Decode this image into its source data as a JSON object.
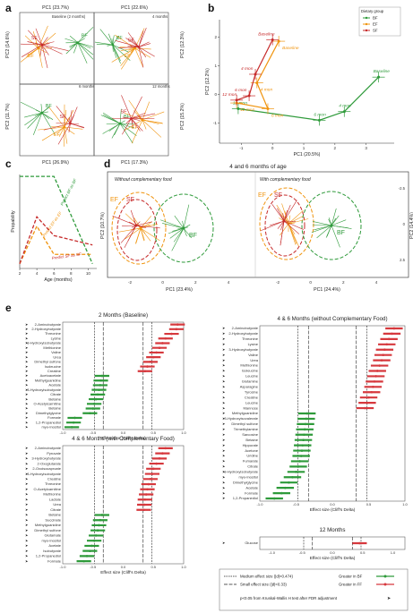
{
  "colors": {
    "BF": "#2e9a3a",
    "EF": "#f0940e",
    "SF": "#c62a2a",
    "axis": "#333333"
  },
  "panel_labels": [
    "a",
    "b",
    "c",
    "d",
    "e"
  ],
  "panel_a": {
    "top_xlabels": [
      "PC1 (23.7%)",
      "PC1 (22.6%)"
    ],
    "bottom_xlabels": [
      "PC1 (26.9%)",
      "PC1 (17.3%)"
    ],
    "ylabels": [
      "PC2 (14.6%)",
      "PC2 (12.3%)",
      "PC2 (11.7%)",
      "PC2 (15.2%)"
    ],
    "subtitles": [
      "Baseline (2 months)",
      "4 months",
      "6 months",
      "12 months"
    ],
    "groups": [
      "BF",
      "EF",
      "SF"
    ]
  },
  "chart_data": [
    {
      "type": "scatter",
      "panel": "b",
      "legend_title": "Dietary group",
      "legend": [
        "BF",
        "EF",
        "SF"
      ],
      "xlabel": "PC1 (20.5%)",
      "ylabel": "PC2 (12.2%)",
      "xticks": [
        "-1",
        "0",
        "1",
        "2",
        "3"
      ],
      "yticks": [
        "-1",
        "0",
        "1",
        "2"
      ],
      "xlim": [
        -1.7,
        3.9
      ],
      "ylim": [
        -1.7,
        2.6
      ],
      "series": [
        {
          "name": "BF",
          "points": [
            {
              "x": 3.4,
              "y": 0.6,
              "label": "Baseline"
            },
            {
              "x": 2.3,
              "y": -0.6,
              "label": "4 mon"
            },
            {
              "x": 1.5,
              "y": -0.9,
              "label": "6 mon"
            },
            {
              "x": -1.1,
              "y": -0.5,
              "label": "12 mon"
            }
          ]
        },
        {
          "name": "EF",
          "points": [
            {
              "x": 0.2,
              "y": 1.85,
              "label": "Baseline"
            },
            {
              "x": -0.5,
              "y": 0.4,
              "label": "4 mon"
            },
            {
              "x": -0.15,
              "y": -0.5,
              "label": "6 mon"
            },
            {
              "x": -1.15,
              "y": -0.3,
              "label": "12 mon"
            }
          ]
        },
        {
          "name": "SF",
          "points": [
            {
              "x": 0.0,
              "y": 1.9,
              "label": "Baseline"
            },
            {
              "x": -0.55,
              "y": 0.7,
              "label": "4 mon"
            },
            {
              "x": -0.75,
              "y": -0.05,
              "label": "6 mon"
            },
            {
              "x": -1.15,
              "y": -0.2,
              "label": "12 mon"
            }
          ]
        }
      ]
    },
    {
      "type": "line",
      "panel": "c",
      "xlabel": "Age (months)",
      "ylabel": "Propability",
      "xticks": [
        "2",
        "4",
        "6",
        "8",
        "10"
      ],
      "xlim": [
        2,
        11
      ],
      "series": [
        {
          "name": "Predict BF as BF",
          "x": [
            2,
            4,
            6,
            10.5
          ],
          "y": [
            0.98,
            0.98,
            0.98,
            0.05
          ]
        },
        {
          "name": "Predict EF as EF",
          "x": [
            2,
            4,
            6,
            10.5
          ],
          "y": [
            0.05,
            0.45,
            0.15,
            0.15
          ]
        },
        {
          "name": "Predict SF as SF",
          "x": [
            2,
            4,
            6,
            10.5
          ],
          "y": [
            0.05,
            0.55,
            0.35,
            0.25
          ]
        }
      ]
    },
    {
      "type": "scatter",
      "panel": "d",
      "title": "4 and 6 months of age",
      "subtitles": [
        "Without complementary food",
        "With complementary food"
      ],
      "xlabels": [
        "PC1 (23.4%)",
        "PC1 (24.4%)"
      ],
      "ylabels": [
        "PC2 (10.7%)",
        "PC2 (14.4%)"
      ],
      "xticks_left": [
        "-2",
        "0",
        "2",
        "4"
      ],
      "xticks_right": [
        "-2",
        "0",
        "2",
        "4"
      ],
      "yticks_right": [
        "-2.5",
        "0",
        "2.5"
      ]
    },
    {
      "type": "bar",
      "panel": "e",
      "subplots": [
        {
          "title": "2 Months (Baseline)",
          "xlabel": "Effect size (Cliff's Delta)",
          "xlim": [
            -1,
            1
          ],
          "categories": [
            "2-Aminobutyrate",
            "2-Hydroxybutyrate",
            "Threonine",
            "Lysine",
            "3-Hydroxyisobutyrate",
            "Methionine",
            "Valine",
            "Urea",
            "Dimethyl sulfone",
            "Isoleucine",
            "Creatine",
            "Acetoacetate",
            "Methylguanidine",
            "Acetate",
            "3-Hydroxyisobutyrate",
            "Citrate",
            "Betaine",
            "O-Acetylcarnitine",
            "Betaine",
            "Dimethylglycine",
            "Formate",
            "1,2-Propanediol",
            "myo-Inositol"
          ],
          "values": [
            0.9,
            0.88,
            0.8,
            0.7,
            0.65,
            0.6,
            0.55,
            0.5,
            0.45,
            0.4,
            0.36,
            -0.35,
            -0.37,
            -0.38,
            -0.4,
            -0.42,
            -0.45,
            -0.48,
            -0.5,
            -0.55,
            -0.8,
            -0.82,
            -0.85
          ]
        },
        {
          "title": "4 & 6 Months (with Complementary Food)",
          "xlabel": "Effect size (Cliff's Delta)",
          "xlim": [
            -1,
            1
          ],
          "categories": [
            "2-Aminobutyrate",
            "Pyruvate",
            "3-Hydroxybutyrate",
            "2-Oxoglutarate",
            "2-Oxoisocaproate",
            "3-Hydroxyisobutyrate",
            "Creatine",
            "Threonine",
            "O-Acetylcarnitine",
            "Methionine",
            "Lactate",
            "Urea",
            "Citrate",
            "Betaine",
            "Succinate",
            "Methylguanidine",
            "Dimethyl sulfone",
            "Glutamate",
            "myo-Inositol",
            "Acetate",
            "Isobutyrate",
            "1,2-Propanediol",
            "Formate"
          ],
          "values": [
            0.7,
            0.65,
            0.6,
            0.55,
            0.5,
            0.48,
            0.45,
            0.42,
            0.4,
            0.38,
            0.36,
            0.35,
            0.34,
            -0.35,
            -0.38,
            -0.4,
            -0.42,
            -0.45,
            -0.48,
            -0.52,
            -0.55,
            -0.6,
            -0.65
          ]
        },
        {
          "title": "4 & 6 Months (without Complementary Food)",
          "xlabel": "Effect size (Cliff's Delta)",
          "xlim": [
            -1,
            1
          ],
          "categories": [
            "2-Aminobutyrate",
            "2-Hydroxybutyrate",
            "Threonine",
            "Lysine",
            "3-Hydroxybutyrate",
            "Valine",
            "Urea",
            "Methionine",
            "Isoleucine",
            "Leucine",
            "Glutamine",
            "Asparagine",
            "Tyrosine",
            "Creatine",
            "Leucine",
            "Mannose",
            "Methylguanidine",
            "3-Hydroxyisovalerate",
            "Dimethyl sulfone",
            "Trimethylamine",
            "Sarcosine",
            "Betaine",
            "Hippurate",
            "Acetone",
            "Uridine",
            "Fumarate",
            "Citrate",
            "3-Hydroxyisobutyrate",
            "myo-Inositol",
            "Dimethylglycine",
            "Acetate",
            "Formate",
            "1,2-Propanediol"
          ],
          "values": [
            0.85,
            0.82,
            0.78,
            0.75,
            0.72,
            0.7,
            0.68,
            0.65,
            0.62,
            0.6,
            0.58,
            0.56,
            0.54,
            0.5,
            0.48,
            0.45,
            -0.35,
            -0.36,
            -0.37,
            -0.38,
            -0.39,
            -0.4,
            -0.41,
            -0.42,
            -0.43,
            -0.45,
            -0.47,
            -0.5,
            -0.55,
            -0.6,
            -0.65,
            -0.7,
            -0.8
          ]
        },
        {
          "title": "12 Months",
          "xlabel": "Effect size (Cliff's Delta)",
          "xlim": [
            -1.2,
            1.2
          ],
          "categories": [
            "Glucose"
          ],
          "values": [
            0.45
          ]
        }
      ],
      "legend": {
        "lines": [
          "Medium effect size (|d|>0.474)",
          "Small effect size (|d|<0.33)"
        ],
        "groups": [
          "Greater in BF",
          "Greater in FF"
        ],
        "note": "p<0.05 from Kruskal-Wallis H test after FDR adjustment"
      }
    }
  ]
}
